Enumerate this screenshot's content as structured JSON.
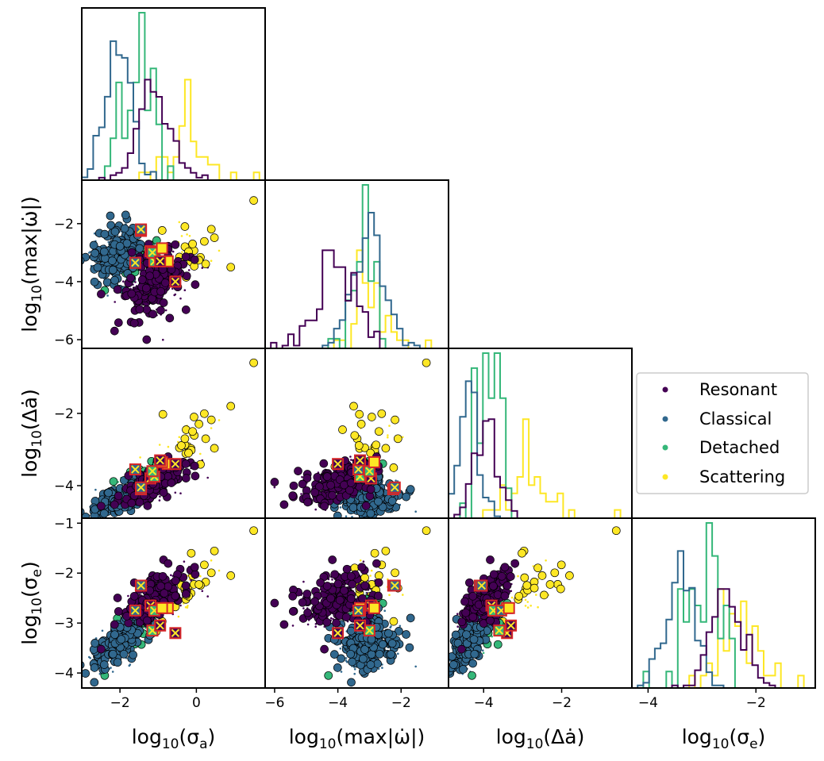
{
  "chart_data": {
    "type": "scatter",
    "title": "",
    "kind": "corner plot",
    "series": [
      {
        "name": "Resonant",
        "color": "#440154"
      },
      {
        "name": "Classical",
        "color": "#31688e"
      },
      {
        "name": "Detached",
        "color": "#35b779"
      },
      {
        "name": "Scattering",
        "color": "#fde725"
      }
    ],
    "variables": [
      {
        "key": "sa",
        "base": "log",
        "sub": "10",
        "label_post": "(σ",
        "label_sub": "a",
        "label_end": ")",
        "range": [
          -3.0,
          1.8
        ]
      },
      {
        "key": "mw",
        "base": "log",
        "sub": "10",
        "label_post": "(max|ω̇|)",
        "range": [
          -6.3,
          -0.5
        ]
      },
      {
        "key": "da",
        "base": "log",
        "sub": "10",
        "label_post": "(Δȧ)",
        "range": [
          -4.9,
          -0.2
        ]
      },
      {
        "key": "se",
        "base": "log",
        "sub": "10",
        "label_post": "(σ",
        "label_sub": "e",
        "label_end": ")",
        "range": [
          -4.3,
          -0.9
        ]
      }
    ],
    "x_ticks": [
      {
        "values": [
          -2,
          0
        ],
        "labels": [
          "−2",
          "0"
        ]
      },
      {
        "values": [
          -6,
          -4,
          -2
        ],
        "labels": [
          "−6",
          "−4",
          "−2"
        ]
      },
      {
        "values": [
          -4,
          -2
        ],
        "labels": [
          "−4",
          "−2"
        ]
      },
      {
        "values": [
          -4,
          -2
        ],
        "labels": [
          "−4",
          "−2"
        ]
      }
    ],
    "y_ticks": [
      null,
      {
        "values": [
          -2,
          -4,
          -6
        ],
        "labels": [
          "−2",
          "−4",
          "−6"
        ]
      },
      {
        "values": [
          -2,
          -4
        ],
        "labels": [
          "−2",
          "−4"
        ]
      },
      {
        "values": [
          -1,
          -2,
          -3,
          -4
        ],
        "labels": [
          "−1",
          "−2",
          "−3",
          "−4"
        ]
      }
    ],
    "populations": [
      {
        "name": "Resonant",
        "mean": [
          -1.1,
          -4.0,
          -3.95,
          -2.55
        ],
        "sd": [
          0.45,
          0.55,
          0.3,
          0.3
        ],
        "n": 260
      },
      {
        "name": "Classical",
        "mean": [
          -2.05,
          -3.0,
          -4.35,
          -3.4
        ],
        "sd": [
          0.35,
          0.5,
          0.25,
          0.25
        ],
        "n": 280
      },
      {
        "name": "Detached",
        "mean": [
          -1.55,
          -3.2,
          -3.9,
          -3.0
        ],
        "sd": [
          0.35,
          0.35,
          0.3,
          0.3
        ],
        "n": 55
      },
      {
        "name": "Scattering",
        "mean": [
          -0.4,
          -3.0,
          -2.9,
          -2.4
        ],
        "sd": [
          0.45,
          0.45,
          0.5,
          0.35
        ],
        "n": 45
      }
    ],
    "outliers": [
      {
        "pop": "Scattering",
        "v": [
          1.5,
          -1.2,
          -0.6,
          -1.15
        ]
      },
      {
        "pop": "Scattering",
        "v": [
          0.9,
          -3.5,
          -1.8,
          -2.05
        ]
      },
      {
        "pop": "Scattering",
        "v": [
          -0.1,
          -2.7,
          -2.5,
          -2.05
        ]
      },
      {
        "pop": "Scattering",
        "v": [
          -0.3,
          -2.1,
          -2.7,
          -2.3
        ]
      },
      {
        "pop": "Resonant",
        "v": [
          -1.3,
          -6.0,
          -3.9,
          -2.6
        ]
      },
      {
        "pop": "Classical",
        "v": [
          -1.85,
          -1.7,
          -4.1,
          -2.9
        ]
      },
      {
        "pop": "Detached",
        "v": [
          -2.4,
          -4.3,
          -4.3,
          -4.05
        ]
      }
    ],
    "highlighted": [
      {
        "pop": "Classical",
        "v": [
          -1.45,
          -2.25,
          -4.1,
          -2.25
        ]
      },
      {
        "pop": "Resonant",
        "v": [
          -1.2,
          -2.95,
          -3.8,
          -2.65
        ]
      },
      {
        "pop": "Detached",
        "v": [
          -1.1,
          -3.3,
          -3.75,
          -2.75
        ]
      },
      {
        "pop": "Scattering",
        "v": [
          -0.75,
          -3.3,
          -3.4,
          -2.7
        ]
      },
      {
        "pop": "Classical",
        "v": [
          -1.6,
          -3.35,
          -3.55,
          -2.75
        ]
      },
      {
        "pop": "Resonant",
        "v": [
          -0.55,
          -4.0,
          -3.4,
          -3.2
        ]
      },
      {
        "pop": "Detached",
        "v": [
          -1.15,
          -3.0,
          -3.6,
          -3.15
        ]
      },
      {
        "pop": "Scattering",
        "v": [
          -0.9,
          -2.85,
          -3.35,
          -2.7
        ]
      },
      {
        "pop": "Classical",
        "v": [
          -1.45,
          -2.2,
          -4.05,
          -2.25
        ]
      },
      {
        "pop": "Resonant",
        "v": [
          -0.95,
          -3.3,
          -3.3,
          -3.05
        ]
      }
    ],
    "legend": {
      "placement": "right",
      "entries": [
        "Resonant",
        "Classical",
        "Detached",
        "Scattering"
      ]
    }
  }
}
